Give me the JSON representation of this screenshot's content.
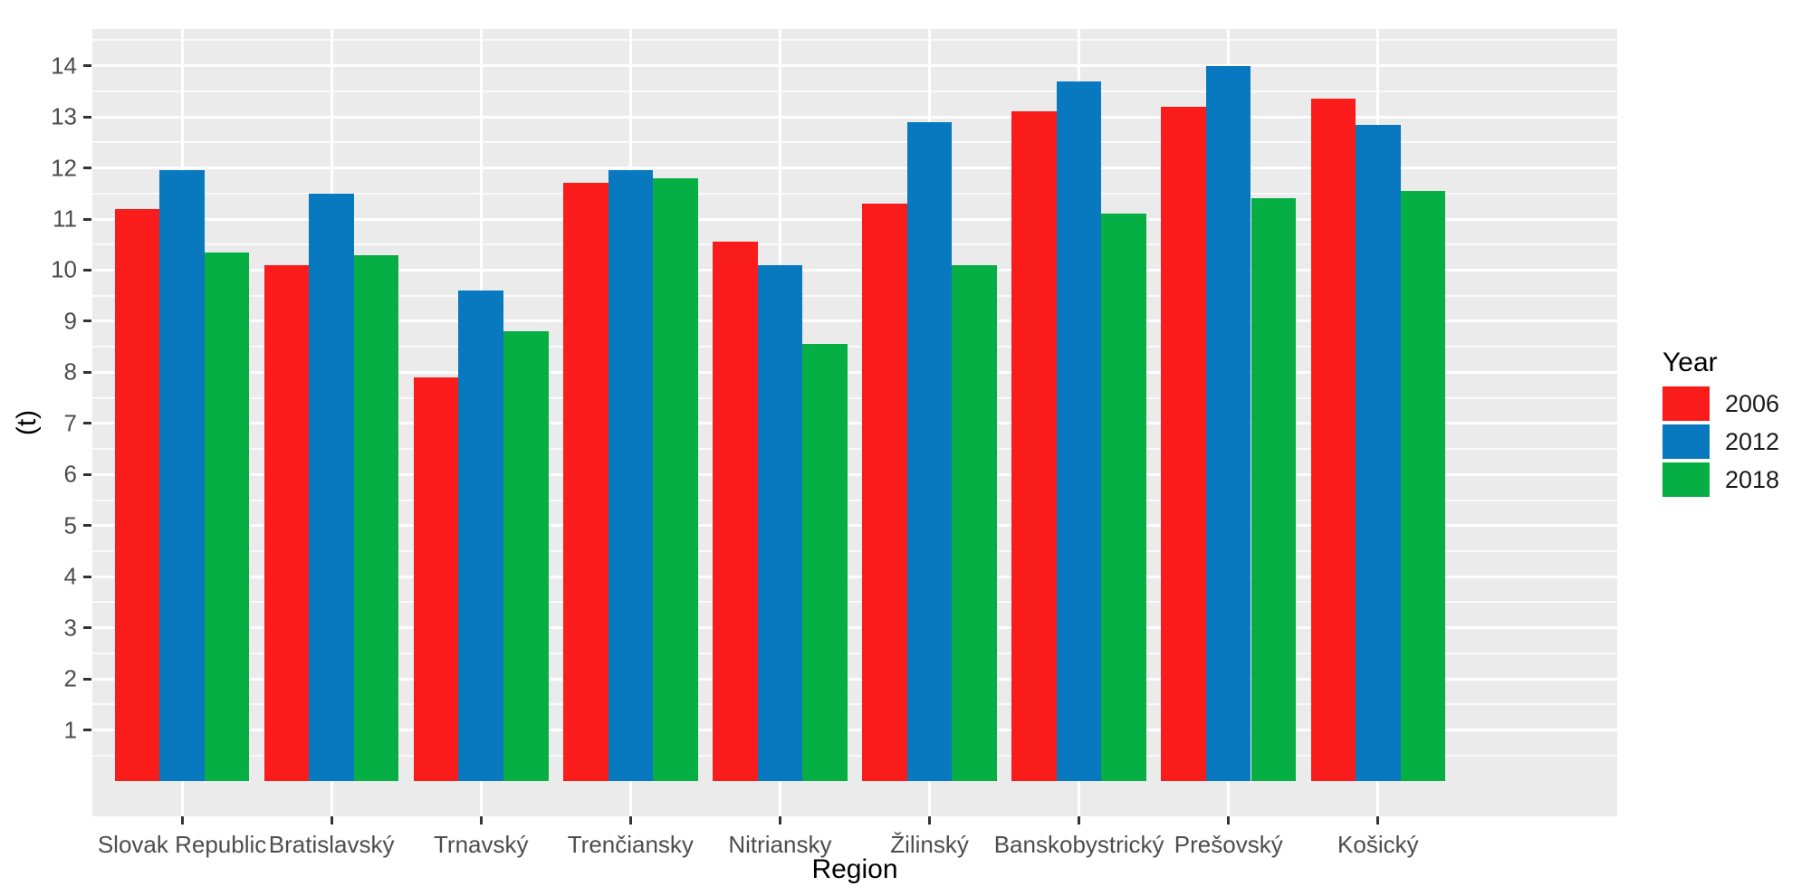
{
  "chart_data": {
    "type": "bar",
    "title": "",
    "xlabel": "Region",
    "ylabel": "(t)",
    "categories": [
      "Slovak Republic",
      "Bratislavský",
      "Trnavský",
      "Trenčiansky",
      "Nitriansky",
      "Žilinský",
      "Banskobystrický",
      "Prešovský",
      "Košický"
    ],
    "series": [
      {
        "name": "2006",
        "color": "#FA1B1B",
        "values": [
          11.2,
          10.1,
          7.9,
          11.7,
          10.55,
          11.3,
          13.1,
          13.2,
          13.35
        ]
      },
      {
        "name": "2012",
        "color": "#0879BE",
        "values": [
          11.95,
          11.5,
          9.6,
          11.95,
          10.1,
          12.9,
          13.7,
          14.0,
          12.85
        ]
      },
      {
        "name": "2018",
        "color": "#05AF43",
        "values": [
          10.35,
          10.3,
          8.8,
          11.8,
          8.55,
          10.1,
          11.1,
          11.4,
          11.55
        ]
      }
    ],
    "y_ticks": [
      1,
      2,
      3,
      4,
      5,
      6,
      7,
      8,
      9,
      10,
      11,
      12,
      13,
      14
    ],
    "ylim": [
      -0.69,
      14.72
    ],
    "legend_title": "Year",
    "legend_position": "right",
    "grid": true,
    "colors": {
      "panel_bg": "#EBEBEB",
      "grid": "#FFFFFF",
      "tick_text": "#4D4D4D",
      "title_text": "#000000",
      "tick_mark": "#333333"
    }
  }
}
